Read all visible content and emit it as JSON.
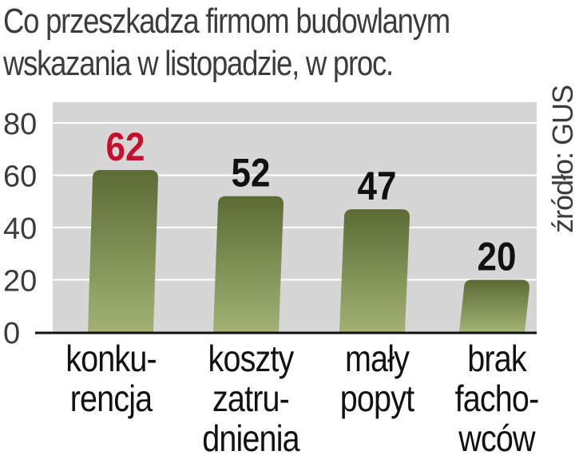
{
  "title_lines": [
    "Co przeszkadza firmom budowlanym",
    "wskazania w listopadzie, w proc."
  ],
  "source": "źródło: GUS",
  "chart_data": {
    "type": "bar",
    "categories": [
      "konku-\nrencja",
      "koszty\nzatru-\ndnienia",
      "mały\npopyt",
      "brak\nfacho-\nwców"
    ],
    "values": [
      62,
      52,
      47,
      20
    ],
    "ylim": [
      0,
      80
    ],
    "yticks": [
      0,
      20,
      40,
      60,
      80
    ],
    "grid": true,
    "highlight_index": 0,
    "colors": {
      "bar_top": "#5c6b34",
      "bar_bottom": "#a2b173",
      "plot_bg": "#d6d6d6",
      "highlight_label": "#c8102e",
      "label": "#111111"
    }
  }
}
